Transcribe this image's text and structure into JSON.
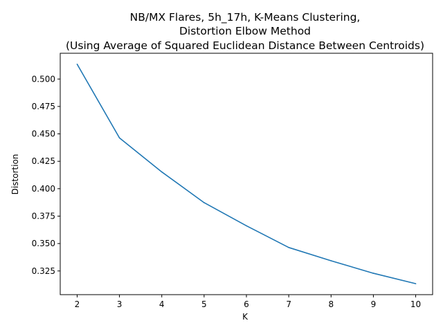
{
  "chart_data": {
    "type": "line",
    "title_lines": [
      "NB/MX Flares, 5h_17h, K-Means Clustering,",
      "Distortion Elbow Method",
      "(Using Average of Squared Euclidean Distance Between Centroids)"
    ],
    "xlabel": "K",
    "ylabel": "Distortion",
    "x": [
      2,
      3,
      4,
      5,
      6,
      7,
      8,
      9,
      10
    ],
    "y": [
      0.5135,
      0.4463,
      0.4153,
      0.3873,
      0.3662,
      0.3464,
      0.3343,
      0.3229,
      0.3134
    ],
    "xlim": [
      1.6,
      10.4
    ],
    "ylim": [
      0.3034,
      0.5235
    ],
    "xticks": [
      "2",
      "3",
      "4",
      "5",
      "6",
      "7",
      "8",
      "9",
      "10"
    ],
    "yticks": [
      "0.325",
      "0.350",
      "0.375",
      "0.400",
      "0.425",
      "0.450",
      "0.475",
      "0.500"
    ],
    "line_color": "#1f77b4",
    "grid": false,
    "legend": "none"
  }
}
